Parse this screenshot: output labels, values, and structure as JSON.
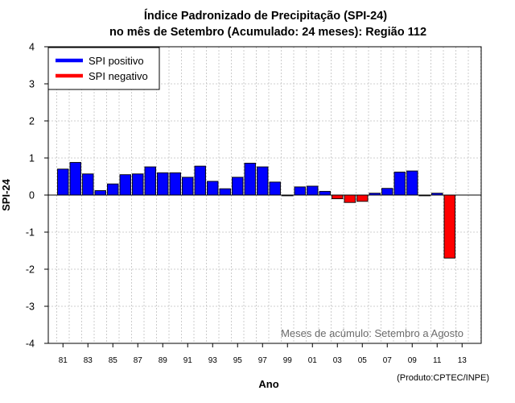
{
  "chart_data": {
    "type": "bar",
    "title": "Índice Padronizado de Precipitação (SPI-24)",
    "subtitle": "no mês de Setembro (Acumulado: 24 meses): Região 112",
    "xlabel": "Ano",
    "ylabel": "SPI-24",
    "ylim": [
      -4,
      4
    ],
    "yticks": [
      "4",
      "3",
      "2",
      "1",
      "0",
      "-1",
      "-2",
      "-3",
      "-4"
    ],
    "xtick_labels": [
      "81",
      "83",
      "85",
      "87",
      "89",
      "91",
      "93",
      "95",
      "97",
      "99",
      "01",
      "03",
      "05",
      "07",
      "09",
      "11",
      "13"
    ],
    "categories": [
      "1981",
      "1982",
      "1983",
      "1984",
      "1985",
      "1986",
      "1987",
      "1988",
      "1989",
      "1990",
      "1991",
      "1992",
      "1993",
      "1994",
      "1995",
      "1996",
      "1997",
      "1998",
      "1999",
      "2000",
      "2001",
      "2002",
      "2003",
      "2004",
      "2005",
      "2006",
      "2007",
      "2008",
      "2009",
      "2010",
      "2011",
      "2012"
    ],
    "values": [
      0.7,
      0.88,
      0.57,
      0.12,
      0.3,
      0.55,
      0.57,
      0.76,
      0.6,
      0.6,
      0.48,
      0.78,
      0.37,
      0.17,
      0.48,
      0.86,
      0.76,
      0.35,
      -0.02,
      0.22,
      0.24,
      0.1,
      -0.1,
      -0.2,
      -0.17,
      0.05,
      0.18,
      0.62,
      0.65,
      -0.02,
      0.05,
      -1.7
    ],
    "colors": {
      "positive": "#0000ff",
      "negative": "#ff0000",
      "grid": "#c0c0c0"
    },
    "legend": {
      "position": "top-left",
      "items": [
        {
          "label": "SPI positivo",
          "color": "#0000ff"
        },
        {
          "label": "SPI negativo",
          "color": "#ff0000"
        }
      ]
    },
    "annotation": "Meses de acúmulo: Setembro a Agosto",
    "credit": "(Produto:CPTEC/INPE)",
    "grid": true
  }
}
